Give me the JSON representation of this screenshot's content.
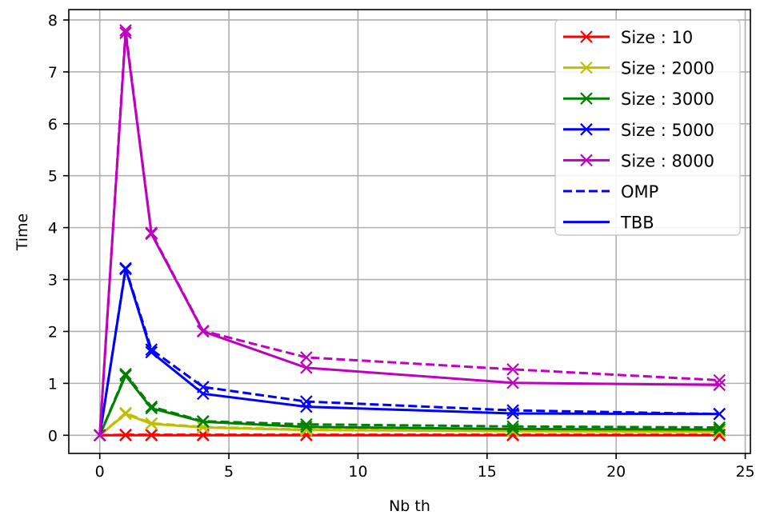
{
  "chart_data": {
    "type": "line",
    "xlabel": "Nb th",
    "ylabel": "Time",
    "xlim": [
      -1.2,
      25.2
    ],
    "ylim": [
      -0.35,
      8.2
    ],
    "xticks": [
      0,
      5,
      10,
      15,
      20,
      25
    ],
    "yticks": [
      0,
      1,
      2,
      3,
      4,
      5,
      6,
      7,
      8
    ],
    "grid": true,
    "legend_position": "top-right",
    "legend": [
      {
        "label": "Size : 10",
        "color": "#ff0000",
        "style": "solid",
        "marker": "x"
      },
      {
        "label": "Size : 2000",
        "color": "#bfbf00",
        "style": "solid",
        "marker": "x"
      },
      {
        "label": "Size : 3000",
        "color": "#008000",
        "style": "solid",
        "marker": "x"
      },
      {
        "label": "Size : 5000",
        "color": "#0000ff",
        "style": "solid",
        "marker": "x"
      },
      {
        "label": "Size : 8000",
        "color": "#bf00bf",
        "style": "solid",
        "marker": "x"
      },
      {
        "label": "OMP",
        "color": "#0000ff",
        "style": "dashed",
        "marker": ""
      },
      {
        "label": "TBB",
        "color": "#0000ff",
        "style": "solid",
        "marker": ""
      }
    ],
    "series": [
      {
        "size": "10",
        "method": "OMP",
        "color": "#ff0000",
        "dashed": true,
        "x": [
          0,
          1,
          2,
          4,
          8,
          16,
          24
        ],
        "y": [
          0,
          0.01,
          0.01,
          0.01,
          0.01,
          0.01,
          0.01
        ]
      },
      {
        "size": "10",
        "method": "TBB",
        "color": "#ff0000",
        "dashed": false,
        "x": [
          0,
          1,
          2,
          4,
          8,
          16,
          24
        ],
        "y": [
          0,
          0.0,
          0.0,
          0.0,
          0.0,
          0.0,
          0.0
        ]
      },
      {
        "size": "2000",
        "method": "OMP",
        "color": "#bfbf00",
        "dashed": true,
        "x": [
          0,
          1,
          2,
          4,
          8,
          16,
          24
        ],
        "y": [
          0,
          0.43,
          0.23,
          0.16,
          0.11,
          0.09,
          0.08
        ]
      },
      {
        "size": "2000",
        "method": "TBB",
        "color": "#bfbf00",
        "dashed": false,
        "x": [
          0,
          1,
          2,
          4,
          8,
          16,
          24
        ],
        "y": [
          0,
          0.41,
          0.22,
          0.15,
          0.1,
          0.08,
          0.07
        ]
      },
      {
        "size": "3000",
        "method": "OMP",
        "color": "#008000",
        "dashed": true,
        "x": [
          0,
          1,
          2,
          4,
          8,
          16,
          24
        ],
        "y": [
          0,
          1.18,
          0.55,
          0.27,
          0.21,
          0.17,
          0.15
        ]
      },
      {
        "size": "3000",
        "method": "TBB",
        "color": "#008000",
        "dashed": false,
        "x": [
          0,
          1,
          2,
          4,
          8,
          16,
          24
        ],
        "y": [
          0,
          1.15,
          0.52,
          0.26,
          0.16,
          0.12,
          0.11
        ]
      },
      {
        "size": "5000",
        "method": "OMP",
        "color": "#0000ff",
        "dashed": true,
        "x": [
          0,
          1,
          2,
          4,
          8,
          16,
          24
        ],
        "y": [
          0,
          3.22,
          1.65,
          0.93,
          0.65,
          0.48,
          0.41
        ]
      },
      {
        "size": "5000",
        "method": "TBB",
        "color": "#0000ff",
        "dashed": false,
        "x": [
          0,
          1,
          2,
          4,
          8,
          16,
          24
        ],
        "y": [
          0,
          3.2,
          1.6,
          0.8,
          0.55,
          0.42,
          0.41
        ]
      },
      {
        "size": "8000",
        "method": "OMP",
        "color": "#bf00bf",
        "dashed": true,
        "x": [
          0,
          1,
          2,
          4,
          8,
          16,
          24
        ],
        "y": [
          0,
          7.8,
          3.9,
          2.01,
          1.5,
          1.27,
          1.06
        ]
      },
      {
        "size": "8000",
        "method": "TBB",
        "color": "#bf00bf",
        "dashed": false,
        "x": [
          0,
          1,
          2,
          4,
          8,
          16,
          24
        ],
        "y": [
          0,
          7.75,
          3.88,
          2.0,
          1.3,
          1.01,
          0.97
        ]
      }
    ]
  }
}
